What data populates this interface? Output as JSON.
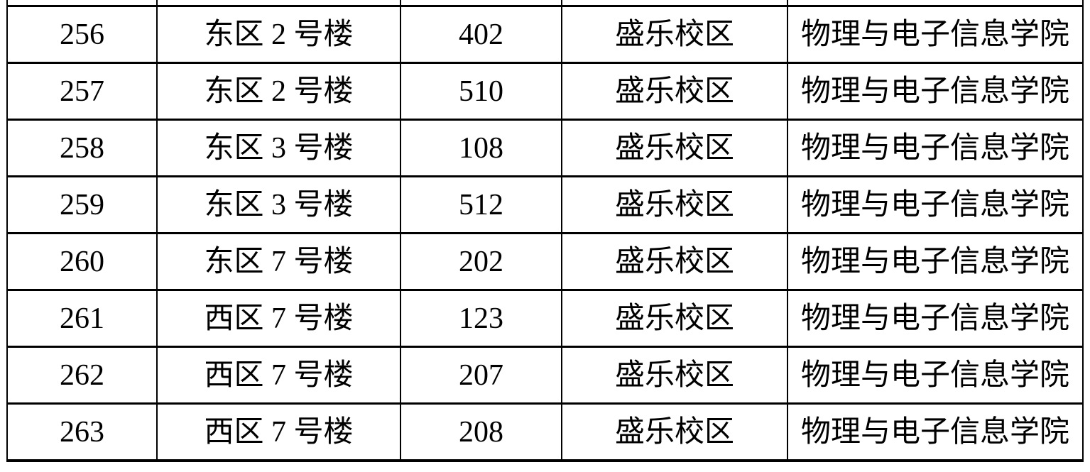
{
  "table": {
    "rows": [
      {
        "no": "256",
        "building": "东区 2 号楼",
        "room": "402",
        "campus": "盛乐校区",
        "college": "物理与电子信息学院"
      },
      {
        "no": "257",
        "building": "东区 2 号楼",
        "room": "510",
        "campus": "盛乐校区",
        "college": "物理与电子信息学院"
      },
      {
        "no": "258",
        "building": "东区 3 号楼",
        "room": "108",
        "campus": "盛乐校区",
        "college": "物理与电子信息学院"
      },
      {
        "no": "259",
        "building": "东区 3 号楼",
        "room": "512",
        "campus": "盛乐校区",
        "college": "物理与电子信息学院"
      },
      {
        "no": "260",
        "building": "东区 7 号楼",
        "room": "202",
        "campus": "盛乐校区",
        "college": "物理与电子信息学院"
      },
      {
        "no": "261",
        "building": "西区 7 号楼",
        "room": "123",
        "campus": "盛乐校区",
        "college": "物理与电子信息学院"
      },
      {
        "no": "262",
        "building": "西区 7 号楼",
        "room": "207",
        "campus": "盛乐校区",
        "college": "物理与电子信息学院"
      },
      {
        "no": "263",
        "building": "西区 7 号楼",
        "room": "208",
        "campus": "盛乐校区",
        "college": "物理与电子信息学院"
      }
    ]
  }
}
